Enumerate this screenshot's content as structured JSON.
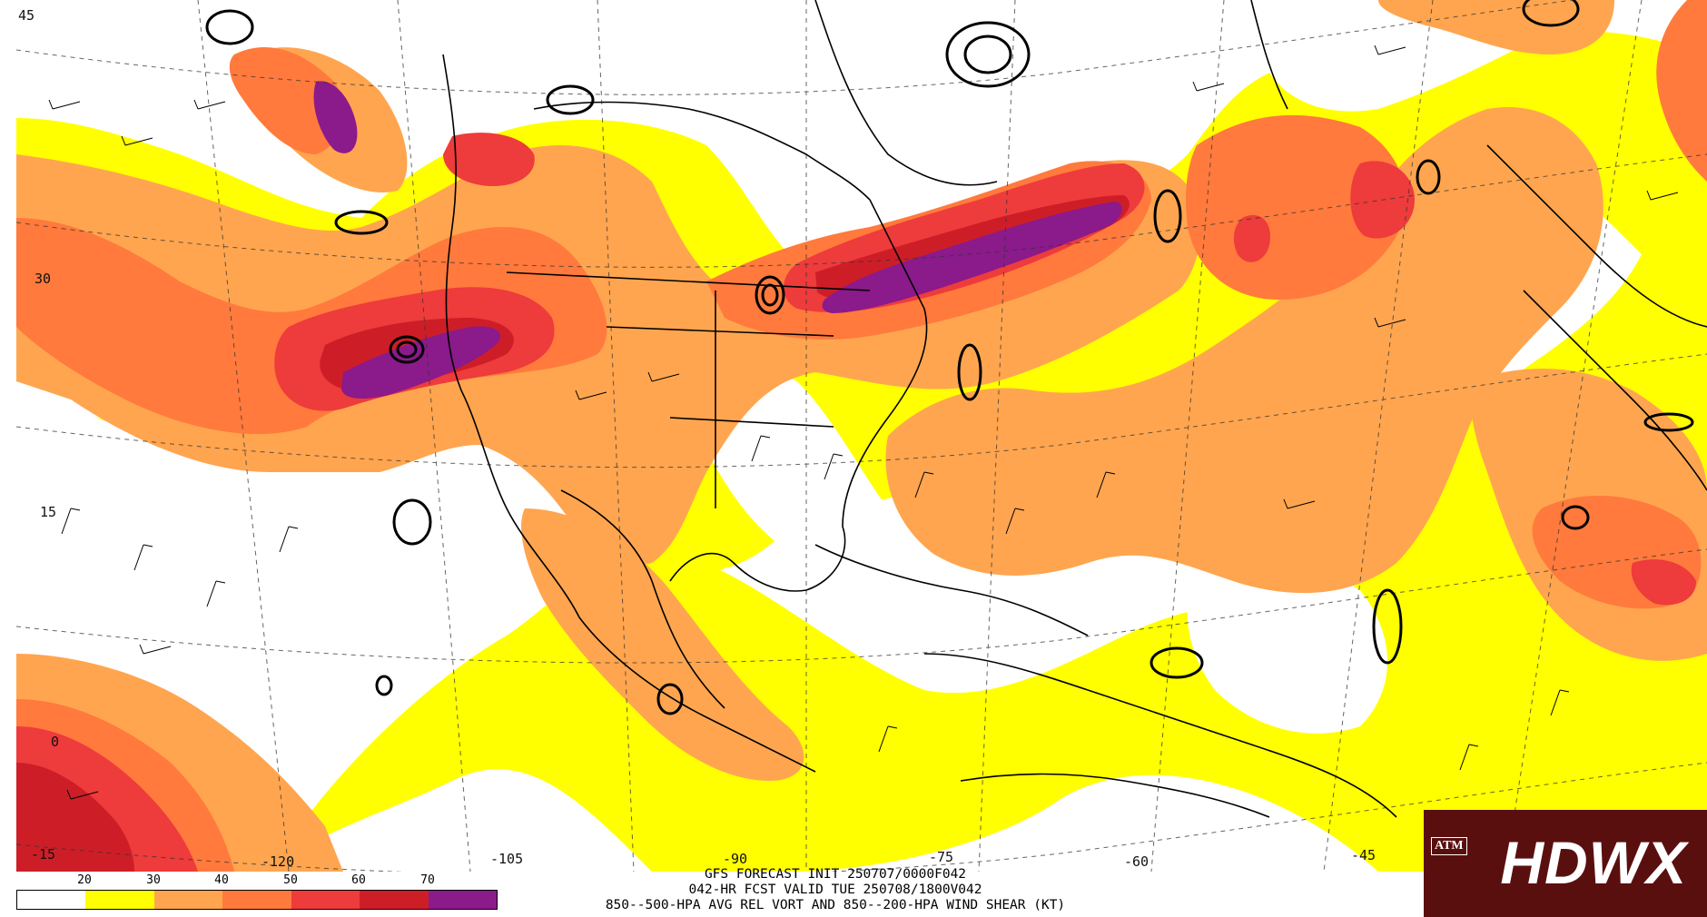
{
  "map": {
    "lat_labels": [
      "45",
      "30",
      "15",
      "0",
      "-15"
    ],
    "lon_labels": [
      "-120",
      "-105",
      "-90",
      "-75",
      "-60",
      "-45"
    ],
    "shading_colors": [
      "#ffffff",
      "#ffff00",
      "#ffa54f",
      "#ff7a3c",
      "#ee3b3b",
      "#cd1e28",
      "#8b1a8b"
    ]
  },
  "legend": {
    "ticks": [
      "20",
      "30",
      "40",
      "50",
      "60",
      "70"
    ],
    "colors": [
      "#ffffff",
      "#ffff00",
      "#ffa54f",
      "#ff7a3c",
      "#ee3b3b",
      "#cd1e28",
      "#8b1a8b"
    ]
  },
  "title": {
    "line1": "GFS FORECAST INIT 250707/0000F042",
    "line2": "042-HR FCST VALID TUE 250708/1800V042",
    "line3": "850--500-HPA AVG REL VORT AND 850--200-HPA WIND SHEAR (KT)"
  },
  "logo": {
    "text": "HDWX",
    "emblem": "ATM"
  }
}
